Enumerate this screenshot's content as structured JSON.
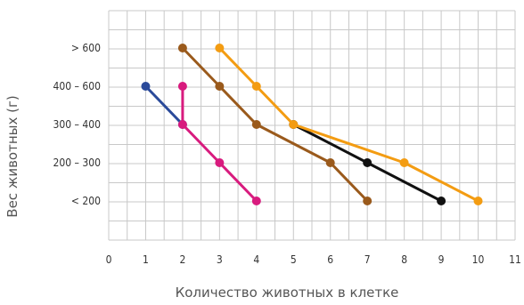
{
  "chart_data": {
    "type": "line",
    "xlabel": "Количество животных в клетке",
    "ylabel": "Вес животных (г)",
    "x_ticks": [
      "0",
      "1",
      "2",
      "3",
      "4",
      "5",
      "6",
      "7",
      "8",
      "9",
      "10",
      "11"
    ],
    "xlim": [
      0,
      11
    ],
    "categories": [
      "< 200",
      "200 – 300",
      "300 – 400",
      "400 – 600",
      "> 600"
    ],
    "grid": true,
    "series": [
      {
        "color": "#2a4a9a",
        "points": [
          [
            1,
            "400 – 600"
          ],
          [
            2,
            "300 – 400"
          ]
        ]
      },
      {
        "color": "#d81b7e",
        "points": [
          [
            2,
            "400 – 600"
          ],
          [
            2,
            "300 – 400"
          ],
          [
            3,
            "200 – 300"
          ],
          [
            4,
            "< 200"
          ]
        ]
      },
      {
        "color": "#9a5a1c",
        "points": [
          [
            2,
            "> 600"
          ],
          [
            3,
            "400 – 600"
          ],
          [
            4,
            "300 – 400"
          ],
          [
            6,
            "200 – 300"
          ],
          [
            7,
            "< 200"
          ]
        ]
      },
      {
        "color": "#111111",
        "points": [
          [
            5,
            "300 – 400"
          ],
          [
            7,
            "200 – 300"
          ],
          [
            9,
            "< 200"
          ]
        ]
      },
      {
        "color": "#f39c12",
        "points": [
          [
            3,
            "> 600"
          ],
          [
            4,
            "400 – 600"
          ],
          [
            5,
            "300 – 400"
          ],
          [
            8,
            "200 – 300"
          ],
          [
            10,
            "< 200"
          ]
        ]
      }
    ]
  }
}
